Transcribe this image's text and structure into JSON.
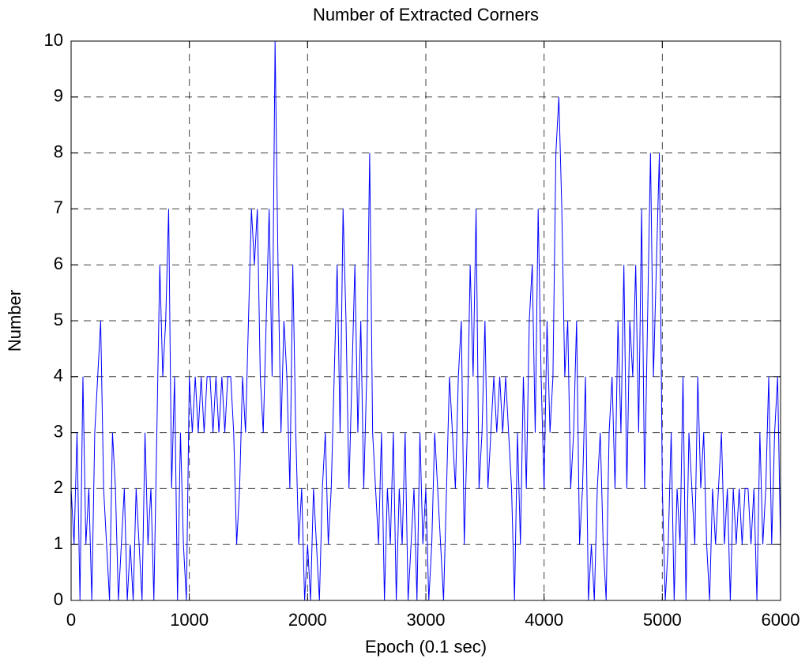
{
  "chart_data": {
    "type": "line",
    "title": "Number of Extracted Corners",
    "xlabel": "Epoch (0.1 sec)",
    "ylabel": "Number",
    "x": [
      0,
      25,
      50,
      75,
      100,
      125,
      150,
      175,
      200,
      225,
      250,
      275,
      300,
      325,
      350,
      375,
      400,
      425,
      450,
      475,
      500,
      525,
      550,
      575,
      600,
      625,
      650,
      675,
      700,
      725,
      750,
      775,
      800,
      825,
      850,
      875,
      900,
      925,
      950,
      975,
      1000,
      1025,
      1050,
      1075,
      1100,
      1125,
      1150,
      1175,
      1200,
      1225,
      1250,
      1275,
      1300,
      1325,
      1350,
      1375,
      1400,
      1425,
      1450,
      1475,
      1500,
      1525,
      1550,
      1575,
      1600,
      1625,
      1650,
      1675,
      1700,
      1725,
      1750,
      1775,
      1800,
      1825,
      1850,
      1875,
      1900,
      1925,
      1950,
      1975,
      2000,
      2025,
      2050,
      2075,
      2100,
      2125,
      2150,
      2175,
      2200,
      2225,
      2250,
      2275,
      2300,
      2325,
      2350,
      2375,
      2400,
      2425,
      2450,
      2475,
      2500,
      2525,
      2550,
      2575,
      2600,
      2625,
      2650,
      2675,
      2700,
      2725,
      2750,
      2775,
      2800,
      2825,
      2850,
      2875,
      2900,
      2925,
      2950,
      2975,
      3000,
      3025,
      3050,
      3075,
      3100,
      3125,
      3150,
      3175,
      3200,
      3225,
      3250,
      3275,
      3300,
      3325,
      3350,
      3375,
      3400,
      3425,
      3450,
      3475,
      3500,
      3525,
      3550,
      3575,
      3600,
      3625,
      3650,
      3675,
      3700,
      3725,
      3750,
      3775,
      3800,
      3825,
      3850,
      3875,
      3900,
      3925,
      3950,
      3975,
      4000,
      4025,
      4050,
      4075,
      4100,
      4125,
      4150,
      4175,
      4200,
      4225,
      4250,
      4275,
      4300,
      4325,
      4350,
      4375,
      4400,
      4425,
      4450,
      4475,
      4500,
      4525,
      4550,
      4575,
      4600,
      4625,
      4650,
      4675,
      4700,
      4725,
      4750,
      4775,
      4800,
      4825,
      4850,
      4875,
      4900,
      4925,
      4950,
      4975,
      5000,
      5025,
      5050,
      5075,
      5100,
      5125,
      5150,
      5175,
      5200,
      5225,
      5250,
      5275,
      5300,
      5325,
      5350,
      5375,
      5400,
      5425,
      5450,
      5475,
      5500,
      5525,
      5550,
      5575,
      5600,
      5625,
      5650,
      5675,
      5700,
      5725,
      5750,
      5775,
      5800,
      5825,
      5850,
      5875,
      5900,
      5925,
      5950,
      5975,
      6000
    ],
    "series": [
      {
        "color": "#0000ff",
        "values": [
          2,
          1,
          3,
          0,
          4,
          1,
          2,
          0,
          3,
          4,
          5,
          2,
          1,
          0,
          3,
          2,
          0,
          1,
          2,
          0,
          1,
          0,
          2,
          1,
          0,
          3,
          1,
          2,
          0,
          3,
          6,
          4,
          5,
          7,
          2,
          4,
          0,
          3,
          1,
          0,
          4,
          3,
          4,
          3,
          4,
          3,
          4,
          4,
          3,
          4,
          3,
          4,
          3,
          4,
          4,
          3,
          1,
          2,
          4,
          3,
          5,
          7,
          6,
          7,
          4,
          3,
          5,
          7,
          4,
          10,
          6,
          3,
          5,
          4,
          2,
          6,
          3,
          1,
          2,
          0,
          1,
          0,
          2,
          1,
          0,
          2,
          3,
          1,
          2,
          4,
          6,
          3,
          7,
          5,
          2,
          4,
          6,
          3,
          5,
          2,
          4,
          8,
          3,
          2,
          1,
          3,
          0,
          2,
          1,
          3,
          0,
          2,
          1,
          3,
          0,
          1,
          2,
          0,
          3,
          1,
          2,
          0,
          1,
          3,
          2,
          1,
          0,
          2,
          4,
          3,
          2,
          4,
          5,
          1,
          3,
          6,
          4,
          7,
          2,
          3,
          5,
          2,
          3,
          4,
          3,
          4,
          3,
          4,
          3,
          2,
          0,
          3,
          1,
          4,
          2,
          5,
          6,
          3,
          7,
          4,
          2,
          5,
          3,
          4,
          8,
          9,
          7,
          4,
          5,
          2,
          3,
          5,
          1,
          2,
          4,
          0,
          1,
          0,
          2,
          3,
          1,
          0,
          3,
          4,
          2,
          5,
          3,
          6,
          2,
          5,
          4,
          6,
          3,
          7,
          2,
          5,
          8,
          4,
          6,
          8,
          2,
          0,
          1,
          3,
          0,
          2,
          1,
          4,
          0,
          3,
          2,
          1,
          4,
          2,
          3,
          1,
          0,
          2,
          1,
          2,
          3,
          1,
          2,
          0,
          2,
          1,
          2,
          1,
          2,
          2,
          1,
          2,
          0,
          3,
          1,
          2,
          4,
          1,
          3,
          4,
          1
        ]
      }
    ],
    "xlim": [
      0,
      6000
    ],
    "ylim": [
      0,
      10
    ],
    "xticks": [
      0,
      1000,
      2000,
      3000,
      4000,
      5000,
      6000
    ],
    "yticks": [
      0,
      1,
      2,
      3,
      4,
      5,
      6,
      7,
      8,
      9,
      10
    ],
    "grid": true
  }
}
